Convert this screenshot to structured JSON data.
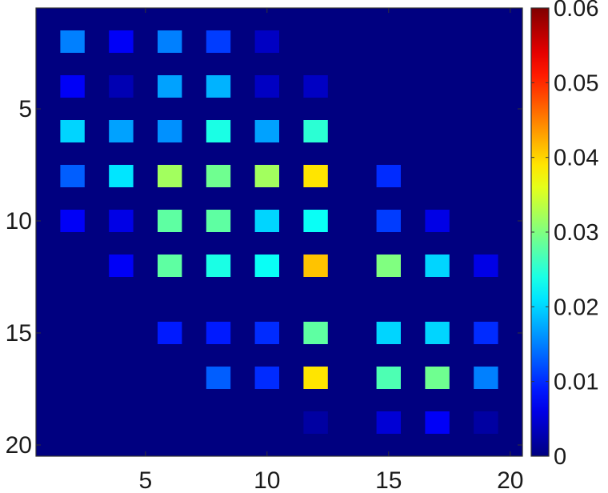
{
  "chart_data": {
    "type": "heatmap",
    "title": "",
    "xlabel": "",
    "ylabel": "",
    "grid": false,
    "colormap": "jet",
    "background_value": 0,
    "xlim": [
      0.5,
      20.5
    ],
    "ylim": [
      20.5,
      0.5
    ],
    "y_axis_direction": "down",
    "x_ticks": [
      5,
      10,
      15,
      20
    ],
    "y_ticks": [
      5,
      10,
      15,
      20
    ],
    "colorbar": {
      "range": [
        0,
        0.06
      ],
      "ticks": [
        "0",
        "0.01",
        "0.02",
        "0.03",
        "0.04",
        "0.05",
        "0.06"
      ],
      "placement": "right"
    },
    "cells": [
      {
        "x": 2,
        "y": 2,
        "v": 0.015
      },
      {
        "x": 4,
        "y": 2,
        "v": 0.007
      },
      {
        "x": 6,
        "y": 2,
        "v": 0.015
      },
      {
        "x": 8,
        "y": 2,
        "v": 0.011
      },
      {
        "x": 10,
        "y": 2,
        "v": 0.004
      },
      {
        "x": 2,
        "y": 4,
        "v": 0.007
      },
      {
        "x": 4,
        "y": 4,
        "v": 0.003
      },
      {
        "x": 6,
        "y": 4,
        "v": 0.017
      },
      {
        "x": 8,
        "y": 4,
        "v": 0.018
      },
      {
        "x": 10,
        "y": 4,
        "v": 0.004
      },
      {
        "x": 12,
        "y": 4,
        "v": 0.004
      },
      {
        "x": 2,
        "y": 6,
        "v": 0.02
      },
      {
        "x": 4,
        "y": 6,
        "v": 0.017
      },
      {
        "x": 6,
        "y": 6,
        "v": 0.016
      },
      {
        "x": 8,
        "y": 6,
        "v": 0.024
      },
      {
        "x": 10,
        "y": 6,
        "v": 0.017
      },
      {
        "x": 12,
        "y": 6,
        "v": 0.025
      },
      {
        "x": 2,
        "y": 8,
        "v": 0.013
      },
      {
        "x": 4,
        "y": 8,
        "v": 0.021
      },
      {
        "x": 6,
        "y": 8,
        "v": 0.032
      },
      {
        "x": 8,
        "y": 8,
        "v": 0.029
      },
      {
        "x": 10,
        "y": 8,
        "v": 0.032
      },
      {
        "x": 12,
        "y": 8,
        "v": 0.039
      },
      {
        "x": 15,
        "y": 8,
        "v": 0.01
      },
      {
        "x": 2,
        "y": 10,
        "v": 0.007
      },
      {
        "x": 4,
        "y": 10,
        "v": 0.006
      },
      {
        "x": 6,
        "y": 10,
        "v": 0.028
      },
      {
        "x": 8,
        "y": 10,
        "v": 0.028
      },
      {
        "x": 10,
        "y": 10,
        "v": 0.02
      },
      {
        "x": 12,
        "y": 10,
        "v": 0.023
      },
      {
        "x": 15,
        "y": 10,
        "v": 0.011
      },
      {
        "x": 17,
        "y": 10,
        "v": 0.006
      },
      {
        "x": 4,
        "y": 12,
        "v": 0.007
      },
      {
        "x": 6,
        "y": 12,
        "v": 0.028
      },
      {
        "x": 8,
        "y": 12,
        "v": 0.024
      },
      {
        "x": 10,
        "y": 12,
        "v": 0.023
      },
      {
        "x": 12,
        "y": 12,
        "v": 0.041
      },
      {
        "x": 15,
        "y": 12,
        "v": 0.03
      },
      {
        "x": 17,
        "y": 12,
        "v": 0.02
      },
      {
        "x": 19,
        "y": 12,
        "v": 0.006
      },
      {
        "x": 6,
        "y": 15,
        "v": 0.009
      },
      {
        "x": 8,
        "y": 15,
        "v": 0.009
      },
      {
        "x": 10,
        "y": 15,
        "v": 0.01
      },
      {
        "x": 12,
        "y": 15,
        "v": 0.028
      },
      {
        "x": 15,
        "y": 15,
        "v": 0.02
      },
      {
        "x": 17,
        "y": 15,
        "v": 0.02
      },
      {
        "x": 19,
        "y": 15,
        "v": 0.01
      },
      {
        "x": 8,
        "y": 17,
        "v": 0.013
      },
      {
        "x": 10,
        "y": 17,
        "v": 0.01
      },
      {
        "x": 12,
        "y": 17,
        "v": 0.039
      },
      {
        "x": 15,
        "y": 17,
        "v": 0.027
      },
      {
        "x": 17,
        "y": 17,
        "v": 0.029
      },
      {
        "x": 19,
        "y": 17,
        "v": 0.015
      },
      {
        "x": 12,
        "y": 19,
        "v": 0.002
      },
      {
        "x": 15,
        "y": 19,
        "v": 0.005
      },
      {
        "x": 17,
        "y": 19,
        "v": 0.007
      },
      {
        "x": 19,
        "y": 19,
        "v": 0.002
      }
    ]
  }
}
